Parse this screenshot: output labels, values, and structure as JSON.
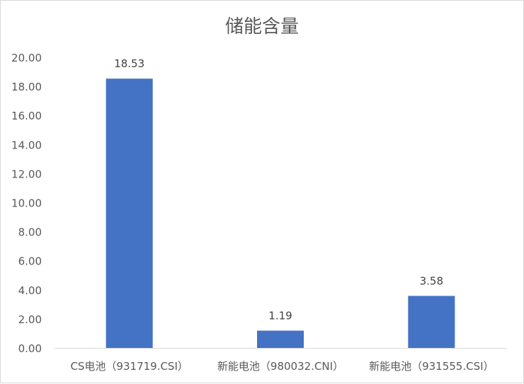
{
  "chart_data": {
    "type": "bar",
    "title": "储能含量",
    "categories": [
      "CS电池（931719.CSI）",
      "新能电池（980032.CNI）",
      "新能电池（931555.CSI）"
    ],
    "values": [
      18.53,
      1.19,
      3.58
    ],
    "data_labels": [
      "18.53",
      "1.19",
      "3.58"
    ],
    "ylim": [
      0,
      20
    ],
    "yticks": [
      "0.00",
      "2.00",
      "4.00",
      "6.00",
      "8.00",
      "10.00",
      "12.00",
      "14.00",
      "16.00",
      "18.00",
      "20.00"
    ],
    "grid": false,
    "bar_color": "#4472C4",
    "xlabel": "",
    "ylabel": ""
  }
}
